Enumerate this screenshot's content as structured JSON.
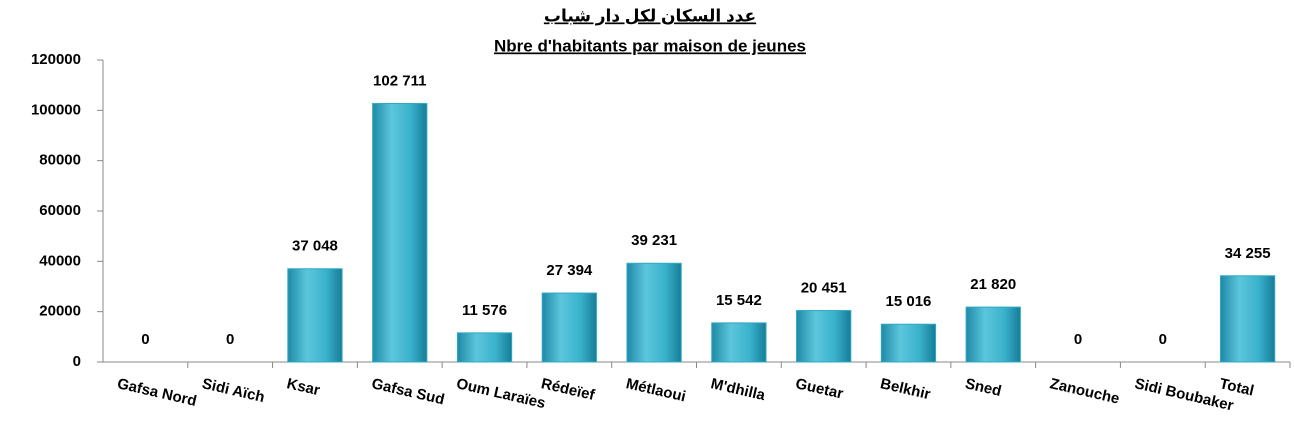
{
  "chart_data": {
    "type": "bar",
    "title": "عدد السكان لكل دار شباب",
    "subtitle": "Nbre d'habitants par maison de jeunes",
    "categories": [
      "Gafsa Nord",
      "Sidi Aïch",
      "Ksar",
      "Gafsa Sud",
      "Oum Laraïes",
      "Rédeïef",
      "Métlaoui",
      "M'dhilla",
      "Guetar",
      "Belkhir",
      "Sned",
      "Zanouche",
      "Sidi Boubaker",
      "Total"
    ],
    "values": [
      0,
      0,
      37048,
      102711,
      11576,
      27394,
      39231,
      15542,
      20451,
      15016,
      21820,
      0,
      0,
      34255
    ],
    "value_labels": [
      "0",
      "0",
      "37 048",
      "102 711",
      "11 576",
      "27 394",
      "39 231",
      "15 542",
      "20 451",
      "15 016",
      "21 820",
      "0",
      "0",
      "34 255"
    ],
    "color": "#31a9c4",
    "ylim": [
      0,
      120000
    ],
    "yticks": [
      0,
      20000,
      40000,
      60000,
      80000,
      100000,
      120000
    ],
    "grid": false
  }
}
